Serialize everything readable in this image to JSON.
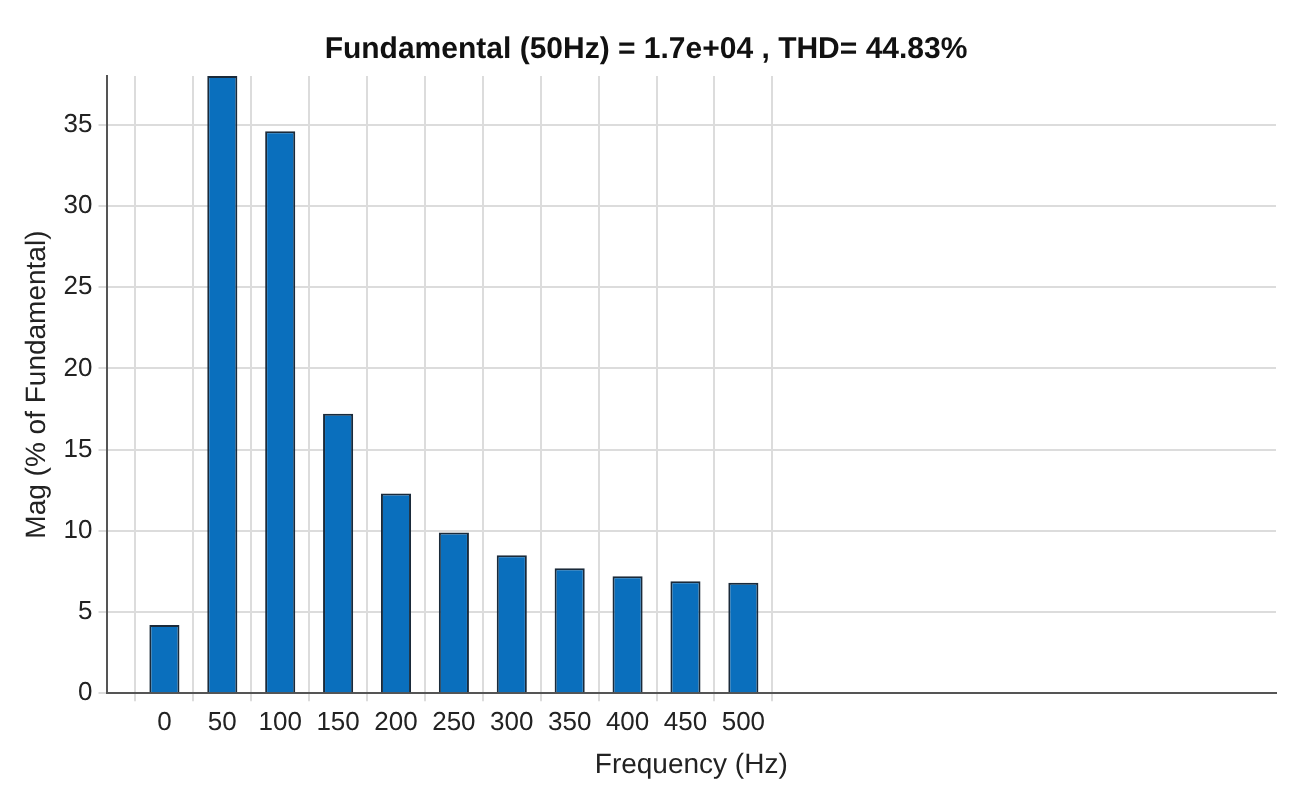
{
  "chart_data": {
    "type": "bar",
    "title": "Fundamental (50Hz) = 1.7e+04 , THD= 44.83%",
    "xlabel": "Frequency (Hz)",
    "ylabel": "Mag (% of Fundamental)",
    "x": [
      0,
      50,
      100,
      150,
      200,
      250,
      300,
      350,
      400,
      450,
      500
    ],
    "values": [
      4.2,
      38,
      34.6,
      17.2,
      12.3,
      9.9,
      8.5,
      7.7,
      7.2,
      6.9,
      6.8
    ],
    "color": "#0a6fbd",
    "xlim": [
      -50,
      960
    ],
    "xticks": [
      0,
      50,
      100,
      150,
      200,
      250,
      300,
      350,
      400,
      450,
      500
    ],
    "ylim": [
      0,
      38
    ],
    "yticks": [
      0,
      5,
      10,
      15,
      20,
      25,
      30,
      35
    ],
    "grid": true,
    "legend": false
  }
}
